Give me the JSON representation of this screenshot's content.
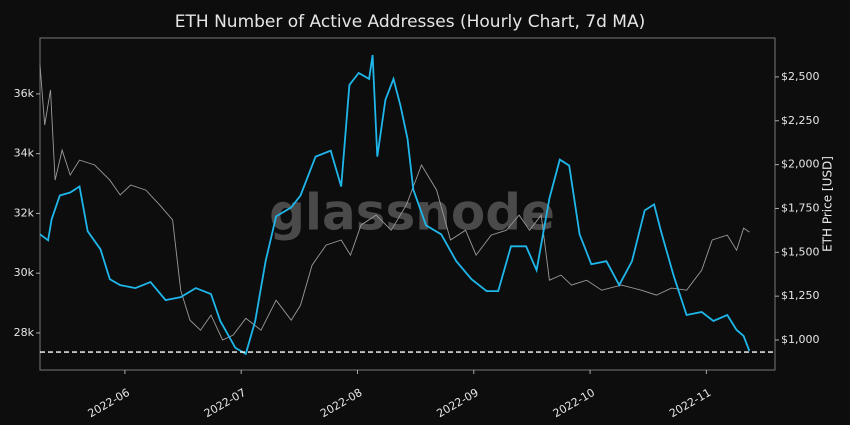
{
  "chart_data": {
    "type": "line",
    "title": "ETH Number of Active Addresses (Hourly Chart, 7d MA)",
    "y2label": "ETH Price [USD]",
    "watermark": "glassnode",
    "xlim": [
      5.27,
      11.59
    ],
    "xticks": [
      {
        "value": 6,
        "label": "2022-06"
      },
      {
        "value": 7,
        "label": "2022-07"
      },
      {
        "value": 8,
        "label": "2022-08"
      },
      {
        "value": 9,
        "label": "2022-09"
      },
      {
        "value": 10,
        "label": "2022-10"
      },
      {
        "value": 11,
        "label": "2022-11"
      }
    ],
    "ylim": [
      26760,
      37870
    ],
    "yticks": [
      {
        "value": 28000,
        "label": "28k"
      },
      {
        "value": 30000,
        "label": "30k"
      },
      {
        "value": 32000,
        "label": "32k"
      },
      {
        "value": 34000,
        "label": "34k"
      },
      {
        "value": 36000,
        "label": "36k"
      }
    ],
    "y2lim": [
      829,
      2722
    ],
    "y2ticks": [
      {
        "value": 1000,
        "label": "$1,000"
      },
      {
        "value": 1250,
        "label": "$1,250"
      },
      {
        "value": 1500,
        "label": "$1,500"
      },
      {
        "value": 1750,
        "label": "$1,750"
      },
      {
        "value": 2000,
        "label": "$2,000"
      },
      {
        "value": 2250,
        "label": "$2,250"
      },
      {
        "value": 2500,
        "label": "$2,500"
      }
    ],
    "reference_line": 27360,
    "series": [
      {
        "color": "#1fb6ea",
        "axis": "y",
        "x": [
          5.27,
          5.34,
          5.37,
          5.44,
          5.53,
          5.61,
          5.68,
          5.79,
          5.87,
          5.96,
          6.09,
          6.22,
          6.35,
          6.48,
          6.61,
          6.74,
          6.82,
          6.95,
          7.04,
          7.12,
          7.21,
          7.3,
          7.43,
          7.51,
          7.64,
          7.77,
          7.86,
          7.93,
          8.01,
          8.1,
          8.13,
          8.17,
          8.24,
          8.31,
          8.37,
          8.43,
          8.48,
          8.59,
          8.72,
          8.85,
          8.98,
          9.11,
          9.21,
          9.32,
          9.45,
          9.54,
          9.65,
          9.74,
          9.82,
          9.91,
          10.01,
          10.14,
          10.25,
          10.36,
          10.47,
          10.55,
          10.61,
          10.72,
          10.83,
          10.96,
          11.06,
          11.18,
          11.26,
          11.32,
          11.37
        ],
        "values": [
          31300,
          31100,
          31800,
          32600,
          32700,
          32900,
          31400,
          30800,
          29800,
          29600,
          29500,
          29700,
          29100,
          29200,
          29500,
          29300,
          28400,
          27500,
          27300,
          28400,
          30400,
          31900,
          32200,
          32600,
          33900,
          34100,
          32900,
          36300,
          36700,
          36500,
          37300,
          33900,
          35800,
          36500,
          35600,
          34500,
          32800,
          31600,
          31300,
          30400,
          29800,
          29400,
          29400,
          30900,
          30900,
          30100,
          32500,
          33800,
          33600,
          31300,
          30300,
          30400,
          29600,
          30400,
          32100,
          32300,
          31400,
          29900,
          28600,
          28700,
          28400,
          28600,
          28100,
          27900,
          27400
        ]
      },
      {
        "color": "#9a9a9a",
        "axis": "y2",
        "x": [
          5.27,
          5.31,
          5.36,
          5.4,
          5.46,
          5.53,
          5.61,
          5.74,
          5.87,
          5.96,
          6.05,
          6.18,
          6.3,
          6.41,
          6.48,
          6.56,
          6.65,
          6.74,
          6.84,
          6.93,
          7.04,
          7.17,
          7.3,
          7.43,
          7.51,
          7.61,
          7.73,
          7.86,
          7.94,
          8.03,
          8.16,
          8.29,
          8.42,
          8.55,
          8.68,
          8.8,
          8.93,
          9.02,
          9.15,
          9.28,
          9.39,
          9.48,
          9.58,
          9.65,
          9.75,
          9.84,
          9.97,
          10.1,
          10.27,
          10.44,
          10.57,
          10.7,
          10.83,
          10.96,
          11.05,
          11.18,
          11.26,
          11.32,
          11.37
        ],
        "values": [
          2568,
          2226,
          2426,
          1912,
          2083,
          1941,
          2026,
          1998,
          1912,
          1827,
          1884,
          1855,
          1769,
          1684,
          1284,
          1113,
          1056,
          1142,
          1000,
          1028,
          1124,
          1056,
          1227,
          1113,
          1198,
          1427,
          1541,
          1570,
          1484,
          1655,
          1712,
          1626,
          1769,
          1998,
          1855,
          1570,
          1626,
          1484,
          1598,
          1626,
          1712,
          1626,
          1712,
          1341,
          1370,
          1313,
          1341,
          1284,
          1313,
          1284,
          1256,
          1296,
          1284,
          1398,
          1570,
          1598,
          1512,
          1638,
          1615
        ]
      }
    ]
  }
}
